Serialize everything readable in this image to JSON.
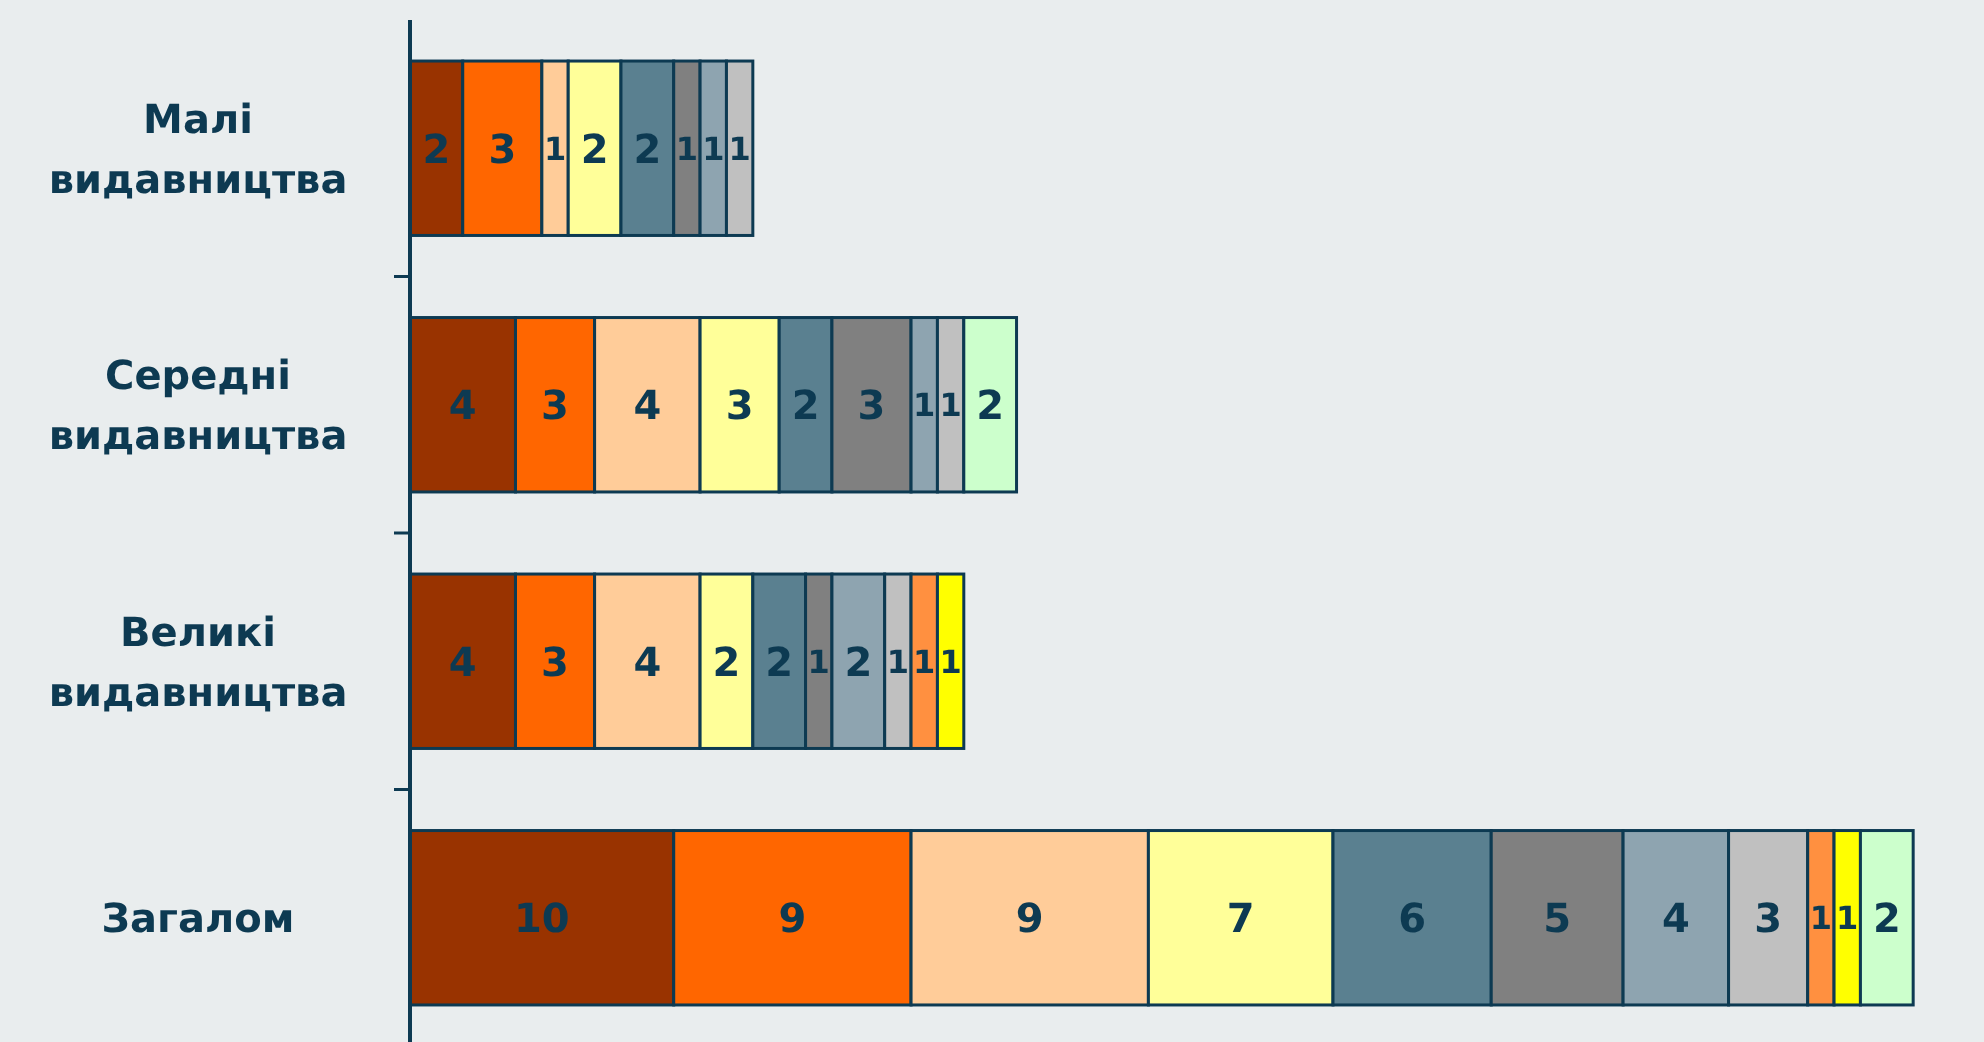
{
  "chart_data": {
    "type": "bar",
    "orientation": "horizontal",
    "stacked": true,
    "data_labels": true,
    "categories": [
      "Малі видавництва",
      "Середні видавництва",
      "Великі видавництва",
      "Загалом"
    ],
    "series": [
      {
        "color": "#993300",
        "values": [
          2,
          4,
          4,
          10
        ]
      },
      {
        "color": "#ff6600",
        "values": [
          3,
          3,
          3,
          9
        ]
      },
      {
        "color": "#ffcc99",
        "values": [
          1,
          4,
          4,
          9
        ]
      },
      {
        "color": "#ffff99",
        "values": [
          2,
          3,
          2,
          7
        ]
      },
      {
        "color": "#5a8090",
        "values": [
          2,
          2,
          2,
          6
        ]
      },
      {
        "color": "#808080",
        "values": [
          1,
          3,
          1,
          5
        ]
      },
      {
        "color": "#8ea4b0",
        "values": [
          1,
          1,
          2,
          4
        ]
      },
      {
        "color": "#c0c0c0",
        "values": [
          1,
          1,
          1,
          3
        ]
      },
      {
        "color": "#ff9040",
        "values": [
          null,
          null,
          1,
          1
        ]
      },
      {
        "color": "#ffff00",
        "values": [
          null,
          null,
          1,
          1
        ]
      },
      {
        "color": "#ccffcc",
        "values": [
          null,
          2,
          null,
          2
        ]
      }
    ]
  }
}
